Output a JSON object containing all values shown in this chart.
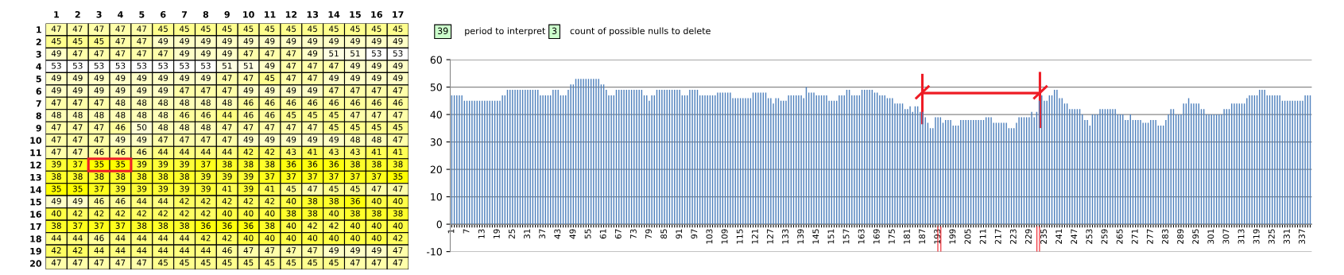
{
  "chart_data": [
    {
      "type": "heatmap",
      "categories": [
        "1",
        "2",
        "3",
        "4",
        "5",
        "6",
        "7",
        "8",
        "9",
        "10",
        "11",
        "12",
        "13",
        "14",
        "15",
        "16",
        "17"
      ],
      "y_categories": [
        "1",
        "2",
        "3",
        "4",
        "5",
        "6",
        "7",
        "8",
        "9",
        "10",
        "11",
        "12",
        "13",
        "14",
        "15",
        "16",
        "17",
        "18",
        "19",
        "20"
      ],
      "colors": [
        "#ffff00",
        "#ffffff"
      ],
      "data_labels": true,
      "cells": [
        [
          47,
          47,
          47,
          47,
          47,
          45,
          45,
          45,
          45,
          45,
          45,
          45,
          45,
          45,
          45,
          45,
          45
        ],
        [
          45,
          45,
          45,
          47,
          47,
          49,
          49,
          49,
          49,
          49,
          49,
          49,
          49,
          49,
          49,
          49,
          49
        ],
        [
          49,
          47,
          47,
          47,
          47,
          47,
          49,
          49,
          49,
          47,
          47,
          47,
          49,
          51,
          51,
          53,
          53
        ],
        [
          53,
          53,
          53,
          53,
          53,
          53,
          53,
          53,
          51,
          51,
          49,
          47,
          47,
          47,
          49,
          49,
          49
        ],
        [
          49,
          49,
          49,
          49,
          49,
          49,
          49,
          49,
          47,
          47,
          45,
          47,
          47,
          49,
          49,
          49,
          49
        ],
        [
          49,
          49,
          49,
          49,
          49,
          49,
          47,
          47,
          47,
          49,
          49,
          49,
          49,
          47,
          47,
          47,
          47
        ],
        [
          47,
          47,
          47,
          48,
          48,
          48,
          48,
          48,
          48,
          46,
          46,
          46,
          46,
          46,
          46,
          46,
          46
        ],
        [
          48,
          48,
          48,
          48,
          48,
          48,
          46,
          46,
          44,
          46,
          46,
          45,
          45,
          45,
          47,
          47,
          47
        ],
        [
          47,
          47,
          47,
          46,
          50,
          48,
          48,
          48,
          47,
          47,
          47,
          47,
          47,
          45,
          45,
          45,
          45
        ],
        [
          47,
          47,
          47,
          49,
          49,
          47,
          47,
          47,
          47,
          49,
          49,
          49,
          49,
          49,
          48,
          48,
          47
        ],
        [
          47,
          47,
          46,
          46,
          46,
          44,
          44,
          44,
          44,
          42,
          42,
          43,
          41,
          43,
          43,
          41,
          41
        ],
        [
          39,
          37,
          35,
          35,
          39,
          39,
          39,
          37,
          38,
          38,
          38,
          36,
          36,
          36,
          38,
          38,
          38
        ],
        [
          38,
          38,
          38,
          38,
          38,
          38,
          38,
          39,
          39,
          39,
          37,
          37,
          37,
          37,
          37,
          37,
          35
        ],
        [
          35,
          35,
          37,
          39,
          39,
          39,
          39,
          39,
          41,
          39,
          41,
          45,
          47,
          45,
          45,
          47,
          47
        ],
        [
          49,
          49,
          46,
          46,
          44,
          44,
          42,
          42,
          42,
          42,
          42,
          40,
          38,
          38,
          36,
          40,
          40
        ],
        [
          40,
          42,
          42,
          42,
          42,
          42,
          42,
          42,
          40,
          40,
          40,
          38,
          38,
          40,
          38,
          38,
          38
        ],
        [
          38,
          37,
          37,
          37,
          38,
          38,
          38,
          36,
          36,
          36,
          38,
          40,
          42,
          42,
          40,
          40,
          40
        ],
        [
          44,
          44,
          46,
          44,
          44,
          44,
          44,
          42,
          42,
          40,
          40,
          40,
          40,
          40,
          40,
          40,
          42
        ],
        [
          42,
          42,
          44,
          44,
          44,
          44,
          44,
          44,
          46,
          47,
          47,
          47,
          47,
          49,
          49,
          49,
          47
        ],
        [
          47,
          47,
          47,
          47,
          47,
          45,
          45,
          45,
          45,
          45,
          45,
          45,
          45,
          45,
          47,
          47,
          47
        ]
      ]
    },
    {
      "type": "bar",
      "color": "#4f81bd",
      "ylim": [
        -10,
        60
      ],
      "yticks": [
        -10,
        0,
        10,
        20,
        30,
        40,
        50,
        60
      ],
      "grid": "y",
      "annotations": [
        "39",
        "period to interpret",
        "3",
        "count of possible nulls to delete"
      ],
      "categories": [
        "1",
        null,
        null,
        null,
        null,
        null,
        "7",
        null,
        null,
        null,
        null,
        null,
        "13",
        null,
        null,
        null,
        null,
        null,
        "19",
        null,
        null,
        null,
        null,
        null,
        "25",
        null,
        null,
        null,
        null,
        null,
        "31",
        null,
        null,
        null,
        null,
        null,
        "37",
        null,
        null,
        null,
        null,
        null,
        "43",
        null,
        null,
        null,
        null,
        null,
        "49",
        null,
        null,
        null,
        null,
        null,
        "55",
        null,
        null,
        null,
        null,
        null,
        "61",
        null,
        null,
        null,
        null,
        null,
        "67",
        null,
        null,
        null,
        null,
        null,
        "73",
        null,
        null,
        null,
        null,
        null,
        "79",
        null,
        null,
        null,
        null,
        null,
        "85",
        null,
        null,
        null,
        null,
        null,
        "91",
        null,
        null,
        null,
        null,
        null,
        "97",
        null,
        null,
        null,
        null,
        null,
        "103",
        null,
        null,
        null,
        null,
        null,
        "109",
        null,
        null,
        null,
        null,
        null,
        "115",
        null,
        null,
        null,
        null,
        null,
        "121",
        null,
        null,
        null,
        null,
        null,
        "127",
        null,
        null,
        null,
        null,
        null,
        "133",
        null,
        null,
        null,
        null,
        null,
        "139",
        null,
        null,
        null,
        null,
        null,
        "145",
        null,
        null,
        null,
        null,
        null,
        "151",
        null,
        null,
        null,
        null,
        null,
        "157",
        null,
        null,
        null,
        null,
        null,
        "163",
        null,
        null,
        null,
        null,
        null,
        "169",
        null,
        null,
        null,
        null,
        null,
        "175",
        null,
        null,
        null,
        null,
        null,
        "181",
        null,
        null,
        null,
        null,
        null,
        "187",
        null,
        null,
        null,
        null,
        null,
        "193",
        null,
        null,
        null,
        null,
        null,
        "199",
        null,
        null,
        null,
        null,
        null,
        "205",
        null,
        null,
        null,
        null,
        null,
        "211",
        null,
        null,
        null,
        null,
        null,
        "217",
        null,
        null,
        null,
        null,
        null,
        "223",
        null,
        null,
        null,
        null,
        null,
        "229",
        null,
        null,
        null,
        null,
        null,
        "235",
        null,
        null,
        null,
        null,
        null,
        "241",
        null,
        null,
        null,
        null,
        null,
        "247",
        null,
        null,
        null,
        null,
        null,
        "253",
        null,
        null,
        null,
        null,
        null,
        "259",
        null,
        null,
        null,
        null,
        null,
        "265",
        null,
        null,
        null,
        null,
        null,
        "271",
        null,
        null,
        null,
        null,
        null,
        "277",
        null,
        null,
        null,
        null,
        null,
        "283",
        null,
        null,
        null,
        null,
        null,
        "289",
        null,
        null,
        null,
        null,
        null,
        "295",
        null,
        null,
        null,
        null,
        null,
        "301",
        null,
        null,
        null,
        null,
        null,
        "307",
        null,
        null,
        null,
        null,
        null,
        "313",
        null,
        null,
        null,
        null,
        null,
        "319",
        null,
        null,
        null,
        null,
        null,
        "325",
        null,
        null,
        null,
        null,
        null,
        "331",
        null,
        null,
        null,
        null,
        null,
        "337",
        null,
        null,
        null
      ],
      "values": [
        47,
        47,
        47,
        47,
        47,
        45,
        45,
        45,
        45,
        45,
        45,
        45,
        45,
        45,
        45,
        45,
        45,
        45,
        45,
        45,
        47,
        47,
        49,
        49,
        49,
        49,
        49,
        49,
        49,
        49,
        49,
        49,
        49,
        49,
        49,
        47,
        47,
        47,
        47,
        47,
        49,
        49,
        49,
        47,
        47,
        47,
        49,
        51,
        51,
        53,
        53,
        53,
        53,
        53,
        53,
        53,
        53,
        53,
        53,
        51,
        51,
        49,
        47,
        47,
        47,
        49,
        49,
        49,
        49,
        49,
        49,
        49,
        49,
        49,
        49,
        49,
        47,
        47,
        45,
        47,
        47,
        49,
        49,
        49,
        49,
        49,
        49,
        49,
        49,
        49,
        49,
        47,
        47,
        47,
        49,
        49,
        49,
        49,
        47,
        47,
        47,
        47,
        47,
        47,
        47,
        48,
        48,
        48,
        48,
        48,
        48,
        46,
        46,
        46,
        46,
        46,
        46,
        46,
        46,
        48,
        48,
        48,
        48,
        48,
        48,
        46,
        46,
        44,
        46,
        46,
        45,
        45,
        45,
        47,
        47,
        47,
        47,
        47,
        47,
        46,
        50,
        48,
        48,
        48,
        47,
        47,
        47,
        47,
        47,
        45,
        45,
        45,
        45,
        47,
        47,
        47,
        49,
        49,
        47,
        47,
        47,
        47,
        49,
        49,
        49,
        49,
        49,
        48,
        48,
        47,
        47,
        47,
        46,
        46,
        46,
        44,
        44,
        44,
        44,
        42,
        42,
        43,
        41,
        43,
        43,
        41,
        41,
        39,
        37,
        35,
        35,
        39,
        39,
        39,
        37,
        38,
        38,
        38,
        36,
        36,
        36,
        38,
        38,
        38,
        38,
        38,
        38,
        38,
        38,
        38,
        38,
        39,
        39,
        39,
        37,
        37,
        37,
        37,
        37,
        37,
        35,
        35,
        35,
        37,
        39,
        39,
        39,
        39,
        39,
        41,
        39,
        41,
        45,
        47,
        45,
        45,
        47,
        47,
        49,
        49,
        46,
        46,
        44,
        44,
        42,
        42,
        42,
        42,
        42,
        40,
        38,
        38,
        36,
        40,
        40,
        40,
        42,
        42,
        42,
        42,
        42,
        42,
        42,
        40,
        40,
        40,
        38,
        38,
        40,
        38,
        38,
        38,
        38,
        37,
        37,
        37,
        38,
        38,
        38,
        36,
        36,
        36,
        38,
        40,
        42,
        42,
        40,
        40,
        40,
        44,
        44,
        46,
        44,
        44,
        44,
        44,
        42,
        42,
        40,
        40,
        40,
        40,
        40,
        40,
        40,
        42,
        42,
        42,
        44,
        44,
        44,
        44,
        44,
        44,
        46,
        47,
        47,
        47,
        47,
        49,
        49,
        49,
        47,
        47,
        47,
        47,
        47,
        47,
        45,
        45,
        45,
        45,
        45,
        45,
        45,
        45,
        45,
        47,
        47,
        47
      ]
    }
  ]
}
